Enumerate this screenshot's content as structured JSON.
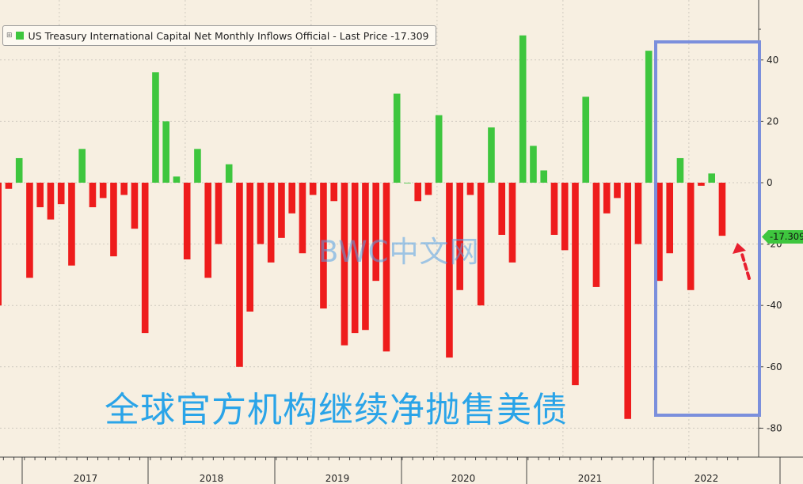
{
  "legend": {
    "series_name": "US Treasury International Capital Net Monthly Inflows Official - Last Price",
    "last_value": "-17.309"
  },
  "last_price_tag": "-17.309",
  "watermark": "BWC中文网",
  "caption": "全球官方机构继续净抛售美债",
  "colors": {
    "positive": "#3ec63e",
    "negative": "#ee1c1c",
    "highlight": "#7b8fdc",
    "arrow": "#e8202f"
  },
  "chart_data": {
    "type": "bar",
    "series": [
      {
        "name": "US Treasury International Capital Net Monthly Inflows Official",
        "values": [
          -40,
          -2,
          8,
          -31,
          -8,
          -12,
          -7,
          -27,
          11,
          -8,
          -5,
          -24,
          -4,
          -15,
          -49,
          36,
          20,
          2,
          -25,
          11,
          -31,
          -20,
          6,
          -60,
          -42,
          -20,
          -26,
          -18,
          -10,
          -23,
          -4,
          -41,
          -6,
          -53,
          -49,
          -48,
          -32,
          -55,
          29,
          0,
          -6,
          -4,
          22,
          -57,
          -35,
          -4,
          -40,
          18,
          -17,
          -26,
          48,
          12,
          4,
          -17,
          -22,
          -66,
          28,
          -34,
          -10,
          -5,
          -77,
          -20,
          43,
          -32,
          -23,
          8,
          -35,
          -1,
          3,
          -17.309
        ]
      }
    ],
    "x_labels": [
      "2017",
      "2018",
      "2019",
      "2020",
      "2021",
      "2022"
    ],
    "ylim": [
      -88,
      58
    ],
    "y_ticks": [
      40,
      20,
      0,
      -20,
      -40,
      -60,
      -80
    ],
    "axis_position": "right",
    "legend_position": "top-left",
    "grid": true,
    "highlight_range": "2022"
  }
}
